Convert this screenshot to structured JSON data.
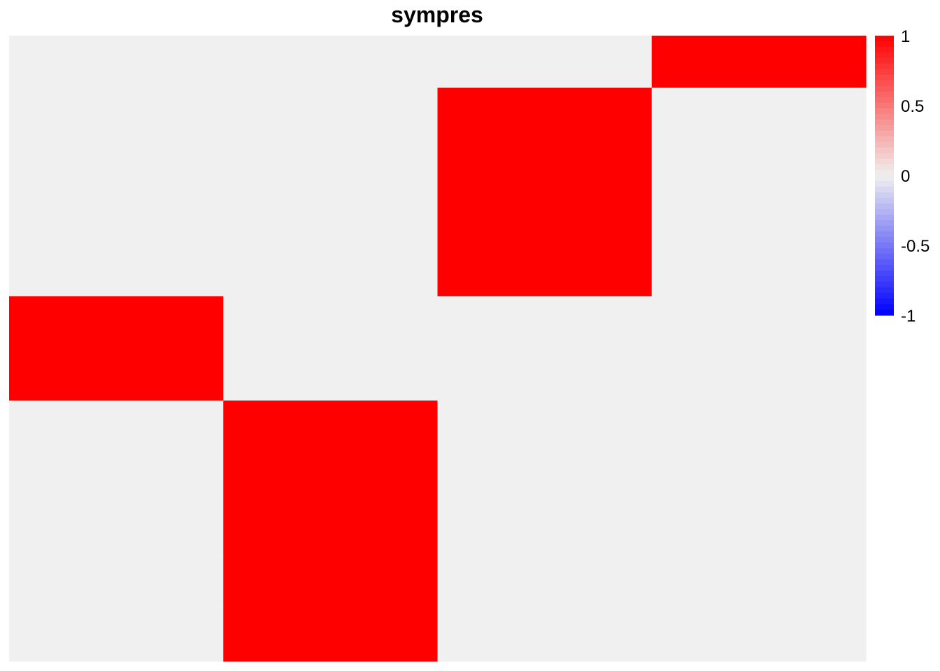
{
  "chart_data": {
    "type": "heatmap",
    "title": "sympres",
    "xlabel": "",
    "ylabel": "",
    "rows": [
      [
        0,
        0,
        0,
        1
      ],
      [
        0,
        0,
        1,
        0
      ],
      [
        0,
        0,
        1,
        0
      ],
      [
        0,
        0,
        1,
        0
      ],
      [
        0,
        0,
        1,
        0
      ],
      [
        1,
        0,
        0,
        0
      ],
      [
        1,
        0,
        0,
        0
      ],
      [
        0,
        1,
        0,
        0
      ],
      [
        0,
        1,
        0,
        0
      ],
      [
        0,
        1,
        0,
        0
      ],
      [
        0,
        1,
        0,
        0
      ],
      [
        0,
        1,
        0,
        0
      ]
    ],
    "color_scale": {
      "min": -1,
      "max": 1,
      "low_color": "#0000ff",
      "mid_color": "#f0f0f0",
      "high_color": "#ff0000",
      "ticks": [
        "1",
        "0.5",
        "0",
        "-0.5",
        "-1"
      ],
      "tick_values": [
        1,
        0.5,
        0,
        -0.5,
        -1
      ]
    },
    "legend_position": "right"
  }
}
